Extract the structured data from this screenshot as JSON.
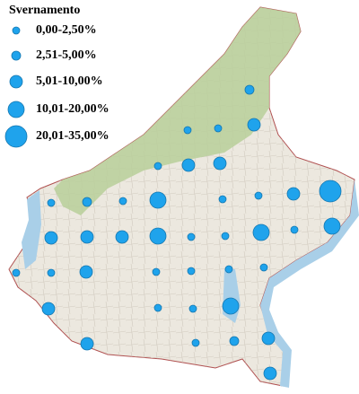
{
  "legend": {
    "title": "Svernamento",
    "entries": [
      "0,00-2,50%",
      "2,51-5,00%",
      "5,01-10,00%",
      "10,01-20,00%",
      "20,01-35,00%"
    ]
  }
}
